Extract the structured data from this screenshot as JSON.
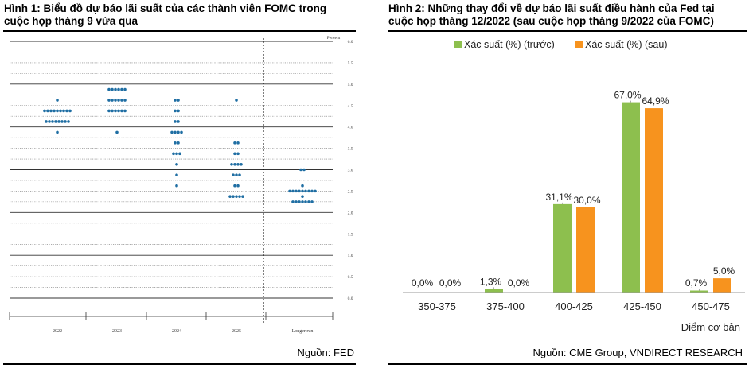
{
  "left": {
    "title_line1": "Hình 1: Biểu đồ dự báo lãi suất của các thành viên FOMC trong",
    "title_line2": "cuộc họp tháng 9 vừa qua",
    "source": "Nguồn: FED",
    "chart_data": {
      "type": "scatter",
      "title": "",
      "ylabel": "Percent",
      "ylim": [
        0,
        6.0
      ],
      "yticks": [
        "0.0",
        "0.5",
        "1.0",
        "1.5",
        "2.0",
        "2.5",
        "3.0",
        "3.5",
        "4.0",
        "4.5",
        "5.0",
        "5.5",
        "6.0"
      ],
      "categories": [
        "2022",
        "2023",
        "2024",
        "2025",
        "Longer run"
      ],
      "series": [
        {
          "category": "2022",
          "points": [
            {
              "y": 4.625,
              "count": 1
            },
            {
              "y": 4.375,
              "count": 9
            },
            {
              "y": 4.125,
              "count": 8
            },
            {
              "y": 3.875,
              "count": 1
            }
          ]
        },
        {
          "category": "2023",
          "points": [
            {
              "y": 4.875,
              "count": 6
            },
            {
              "y": 4.625,
              "count": 6
            },
            {
              "y": 4.375,
              "count": 6
            },
            {
              "y": 3.875,
              "count": 1
            }
          ]
        },
        {
          "category": "2024",
          "points": [
            {
              "y": 4.625,
              "count": 2
            },
            {
              "y": 4.375,
              "count": 2
            },
            {
              "y": 4.125,
              "count": 2
            },
            {
              "y": 3.875,
              "count": 4
            },
            {
              "y": 3.625,
              "count": 2
            },
            {
              "y": 3.375,
              "count": 3
            },
            {
              "y": 3.125,
              "count": 1
            },
            {
              "y": 2.875,
              "count": 1
            },
            {
              "y": 2.625,
              "count": 1
            }
          ]
        },
        {
          "category": "2025",
          "points": [
            {
              "y": 4.625,
              "count": 1
            },
            {
              "y": 3.625,
              "count": 2
            },
            {
              "y": 3.375,
              "count": 2
            },
            {
              "y": 3.125,
              "count": 4
            },
            {
              "y": 2.875,
              "count": 3
            },
            {
              "y": 2.625,
              "count": 2
            },
            {
              "y": 2.375,
              "count": 5
            }
          ]
        },
        {
          "category": "Longer run",
          "points": [
            {
              "y": 3.0,
              "count": 2
            },
            {
              "y": 2.625,
              "count": 1
            },
            {
              "y": 2.5,
              "count": 9
            },
            {
              "y": 2.375,
              "count": 1
            },
            {
              "y": 2.25,
              "count": 7
            }
          ]
        }
      ]
    }
  },
  "right": {
    "title_line1": "Hình 2: Những thay đổi về dự báo lãi suất điều hành của Fed tại",
    "title_line2": "cuộc họp tháng 12/2022 (sau cuộc họp tháng 9/2022 của FOMC)",
    "source": "Nguồn: CME Group, VNDIRECT RESEARCH",
    "chart_data": {
      "type": "bar",
      "title": "",
      "xlabel": "Điểm cơ bản",
      "ylabel": "",
      "ylim": [
        0,
        75
      ],
      "categories": [
        "350-375",
        "375-400",
        "400-425",
        "425-450",
        "450-475"
      ],
      "series": [
        {
          "name": "Xác suất (%) (trước)",
          "color": "#8DBF4E",
          "values": [
            0.0,
            1.3,
            31.1,
            67.0,
            0.7
          ],
          "labels": [
            "0,0%",
            "1,3%",
            "31,1%",
            "67,0%",
            "0,7%"
          ]
        },
        {
          "name": "Xác suất (%) (sau)",
          "color": "#F7931E",
          "values": [
            0.0,
            0.0,
            30.0,
            64.9,
            5.0
          ],
          "labels": [
            "0,0%",
            "0,0%",
            "30,0%",
            "64,9%",
            "5,0%"
          ]
        }
      ]
    }
  }
}
